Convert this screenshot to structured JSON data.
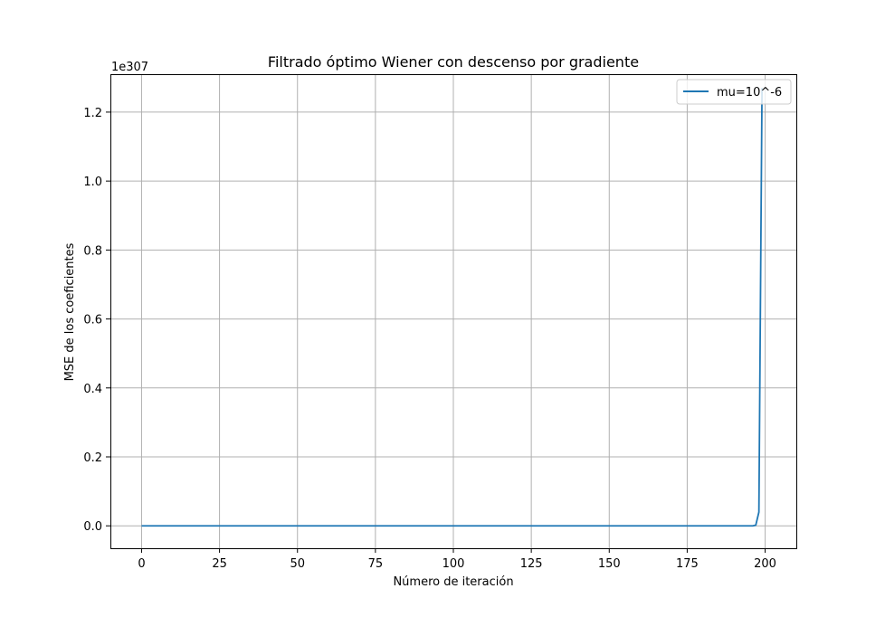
{
  "chart_data": {
    "type": "line",
    "title": "Filtrado óptimo Wiener con descenso por gradiente",
    "xlabel": "Número de iteración",
    "ylabel": "MSE de los coeficientes",
    "y_offset_label": "1e307",
    "xlim": [
      -10,
      210
    ],
    "ylim": [
      -0.065,
      1.31
    ],
    "x_ticks": [
      0,
      25,
      50,
      75,
      100,
      125,
      150,
      175,
      200
    ],
    "x_tick_labels": [
      "0",
      "25",
      "50",
      "75",
      "100",
      "125",
      "150",
      "175",
      "200"
    ],
    "y_ticks": [
      0.0,
      0.2,
      0.4,
      0.6,
      0.8,
      1.0,
      1.2
    ],
    "y_tick_labels": [
      "0.0",
      "0.2",
      "0.4",
      "0.6",
      "0.8",
      "1.0",
      "1.2"
    ],
    "grid": true,
    "legend_position": "top-right",
    "series": [
      {
        "name": "mu=10^-6",
        "color": "#1f77b4",
        "x": [
          0,
          196,
          197,
          198,
          199
        ],
        "y": [
          0.0,
          0.0,
          0.002,
          0.04,
          1.27
        ]
      }
    ]
  }
}
